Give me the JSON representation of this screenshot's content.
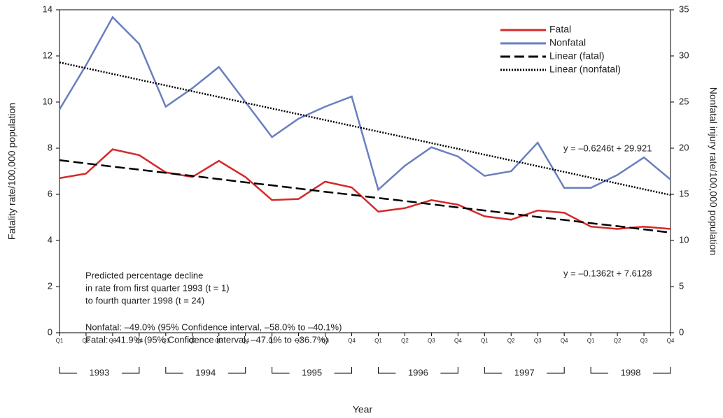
{
  "chart_data": {
    "type": "line",
    "x_label": "Year",
    "y_label": "Fatality rate/100,000 population",
    "y2_label": "Nonfatal injury rate/100,000 population",
    "categories": [
      "Q1",
      "Q2",
      "Q3",
      "Q4",
      "Q1",
      "Q2",
      "Q3",
      "Q4",
      "Q1",
      "Q2",
      "Q3",
      "Q4",
      "Q1",
      "Q2",
      "Q3",
      "Q4",
      "Q1",
      "Q2",
      "Q3",
      "Q4",
      "Q1",
      "Q2",
      "Q3",
      "Q4"
    ],
    "groups": [
      "1993",
      "1994",
      "1995",
      "1996",
      "1997",
      "1998"
    ],
    "ylim": [
      0,
      14
    ],
    "yticks": [
      0,
      2,
      4,
      6,
      8,
      10,
      12,
      14
    ],
    "y2lim": [
      0,
      35
    ],
    "y2ticks": [
      0,
      5,
      10,
      15,
      20,
      25,
      30,
      35
    ],
    "series": [
      {
        "name": "Fatal",
        "color": "#d42a2a",
        "dash": "solid",
        "values": [
          6.7,
          6.9,
          7.95,
          7.7,
          6.95,
          6.75,
          7.45,
          6.75,
          5.75,
          5.8,
          6.55,
          6.3,
          5.25,
          5.4,
          5.75,
          5.55,
          5.05,
          4.9,
          5.3,
          5.2,
          4.6,
          4.5,
          4.6,
          4.5
        ]
      },
      {
        "name": "Nonfatal",
        "color": "#6a7fbf",
        "dash": "solid",
        "axis": "y2",
        "values": [
          24.2,
          29,
          34.2,
          31.3,
          24.5,
          26.5,
          28.8,
          25,
          21.2,
          23.2,
          24.5,
          25.6,
          15.5,
          18.1,
          20.1,
          19.1,
          17,
          17.5,
          20.6,
          15.7,
          15.7,
          17.1,
          19,
          16.6
        ]
      },
      {
        "name": "Linear (fatal)",
        "color": "#000000",
        "dash": "dashed",
        "values": [
          7.48,
          7.34,
          7.2,
          7.07,
          6.93,
          6.8,
          6.66,
          6.52,
          6.39,
          6.25,
          6.11,
          5.98,
          5.84,
          5.71,
          5.57,
          5.43,
          5.3,
          5.16,
          5.02,
          4.89,
          4.75,
          4.62,
          4.48,
          4.34
        ]
      },
      {
        "name": "Linear (nonfatal)",
        "color": "#000000",
        "dash": "dotted",
        "axis": "y2",
        "values": [
          29.3,
          28.67,
          28.05,
          27.42,
          26.8,
          26.17,
          25.55,
          24.92,
          24.3,
          23.68,
          23.05,
          22.43,
          21.8,
          21.18,
          20.55,
          19.93,
          19.3,
          18.68,
          18.05,
          17.43,
          16.8,
          16.18,
          15.55,
          14.93
        ]
      }
    ],
    "equations": [
      "y = –0.6246t + 29.921",
      "y = –0.1362t + 7.6128"
    ],
    "annotation": [
      "Predicted percentage decline",
      "in rate from first quarter 1993 (t = 1)",
      "to fourth quarter 1998 (t = 24)",
      "Nonfatal: –49.0% (95% Confidence interval, –58.0% to –40.1%)",
      "Fatal: –41.9% (95% Confidence interval, –47.1% to –36.7%)"
    ],
    "legend": "top-right"
  }
}
